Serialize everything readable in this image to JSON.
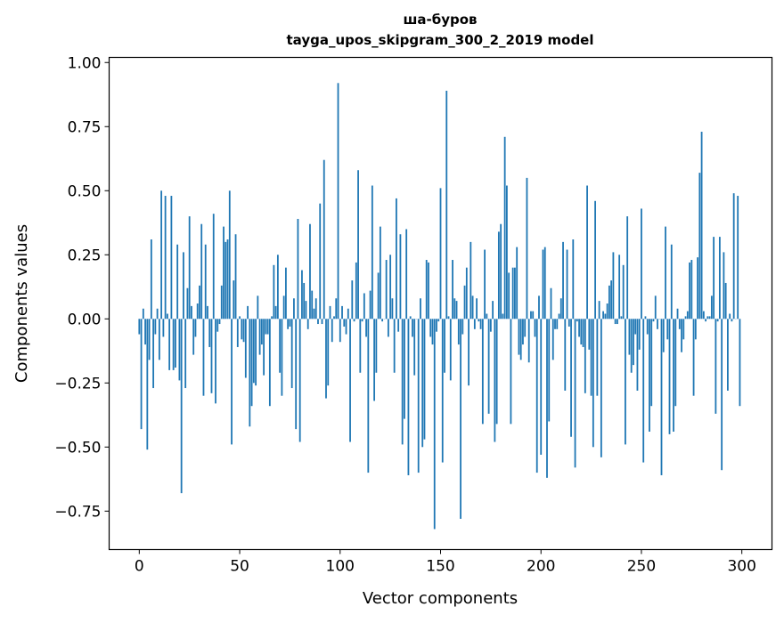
{
  "chart_data": {
    "type": "bar",
    "title": "ша-буров",
    "subtitle": "tayga_upos_skipgram_300_2_2019 model",
    "xlabel": "Vector components",
    "ylabel": "Components values",
    "xlim": [
      -15,
      315
    ],
    "ylim": [
      -0.9,
      1.02
    ],
    "xticks": [
      0,
      50,
      100,
      150,
      200,
      250,
      300
    ],
    "xtick_labels": [
      "0",
      "50",
      "100",
      "150",
      "200",
      "250",
      "300"
    ],
    "yticks": [
      -0.75,
      -0.5,
      -0.25,
      0,
      0.25,
      0.5,
      0.75,
      1.0
    ],
    "ytick_labels": [
      "−0.75",
      "−0.50",
      "−0.25",
      "0.00",
      "0.25",
      "0.50",
      "0.75",
      "1.00"
    ],
    "grid": false,
    "bar_color": "#1f77b4",
    "values": [
      -0.06,
      -0.43,
      0.04,
      -0.1,
      -0.51,
      -0.16,
      0.31,
      -0.27,
      -0.06,
      0.04,
      -0.16,
      0.5,
      -0.07,
      0.48,
      0.02,
      -0.2,
      0.48,
      -0.2,
      -0.19,
      0.29,
      -0.24,
      -0.68,
      0.26,
      -0.27,
      0.12,
      0.4,
      0.05,
      -0.14,
      -0.07,
      0.06,
      0.13,
      0.37,
      -0.3,
      0.29,
      0.05,
      -0.11,
      -0.29,
      0.41,
      -0.33,
      -0.05,
      -0.02,
      0.13,
      0.36,
      0.3,
      0.31,
      0.5,
      -0.49,
      0.15,
      0.33,
      -0.11,
      0.01,
      -0.08,
      -0.09,
      -0.23,
      0.05,
      -0.42,
      -0.34,
      -0.25,
      -0.26,
      0.09,
      -0.14,
      -0.1,
      -0.22,
      -0.06,
      -0.06,
      -0.34,
      0.01,
      0.21,
      0.05,
      0.25,
      -0.21,
      -0.3,
      0.09,
      0.2,
      -0.04,
      -0.03,
      -0.27,
      0.08,
      -0.43,
      0.39,
      -0.48,
      0.19,
      0.14,
      0.07,
      -0.04,
      0.37,
      0.11,
      0.04,
      0.08,
      -0.02,
      0.45,
      -0.02,
      0.62,
      -0.31,
      -0.26,
      0.05,
      -0.09,
      0.01,
      0.08,
      0.92,
      -0.09,
      0.05,
      -0.03,
      -0.06,
      0.04,
      -0.48,
      0.15,
      -0.01,
      0.22,
      0.58,
      -0.21,
      -0.01,
      0.1,
      -0.07,
      -0.6,
      0.11,
      0.52,
      -0.32,
      -0.21,
      0.18,
      0.36,
      -0.01,
      0.0,
      0.23,
      -0.07,
      0.25,
      0.08,
      -0.21,
      0.47,
      -0.05,
      0.33,
      -0.49,
      -0.39,
      0.35,
      -0.61,
      0.01,
      -0.07,
      -0.22,
      0.0,
      -0.6,
      0.08,
      -0.5,
      -0.47,
      0.23,
      0.22,
      -0.07,
      -0.1,
      -0.82,
      -0.05,
      -0.01,
      0.51,
      -0.56,
      -0.21,
      0.89,
      0.01,
      -0.24,
      0.23,
      0.08,
      0.07,
      -0.1,
      -0.78,
      -0.06,
      0.13,
      0.2,
      -0.26,
      0.3,
      0.09,
      -0.04,
      0.08,
      -0.01,
      -0.04,
      -0.41,
      0.27,
      0.02,
      -0.37,
      -0.05,
      0.07,
      -0.48,
      -0.41,
      0.34,
      0.37,
      0.02,
      0.71,
      0.52,
      0.18,
      -0.41,
      0.2,
      0.2,
      0.28,
      -0.14,
      -0.16,
      -0.1,
      -0.07,
      0.55,
      -0.17,
      0.03,
      0.03,
      -0.07,
      -0.6,
      0.09,
      -0.53,
      0.27,
      0.28,
      -0.62,
      -0.4,
      0.12,
      -0.16,
      -0.04,
      -0.04,
      0.02,
      0.08,
      0.3,
      -0.28,
      0.27,
      -0.03,
      -0.46,
      0.31,
      -0.58,
      -0.01,
      -0.07,
      -0.1,
      -0.11,
      -0.29,
      0.52,
      -0.12,
      -0.3,
      -0.5,
      0.46,
      -0.3,
      0.07,
      -0.54,
      0.03,
      0.02,
      0.06,
      0.13,
      0.15,
      0.26,
      -0.02,
      -0.02,
      0.25,
      0.01,
      0.21,
      -0.49,
      0.4,
      -0.14,
      -0.21,
      -0.18,
      -0.06,
      -0.28,
      -0.12,
      0.43,
      -0.56,
      0.01,
      -0.06,
      -0.44,
      -0.34,
      -0.01,
      0.09,
      -0.04,
      0.0,
      -0.61,
      -0.13,
      0.36,
      -0.08,
      -0.45,
      0.29,
      -0.44,
      -0.34,
      0.04,
      -0.04,
      -0.13,
      -0.08,
      0.01,
      0.03,
      0.22,
      0.23,
      -0.3,
      -0.08,
      0.24,
      0.57,
      0.73,
      0.03,
      -0.01,
      0.01,
      0.01,
      0.09,
      0.32,
      -0.37,
      -0.01,
      0.32,
      -0.59,
      0.26,
      0.14,
      -0.28,
      0.02,
      -0.01,
      0.49,
      0.0,
      0.48,
      -0.34
    ]
  }
}
